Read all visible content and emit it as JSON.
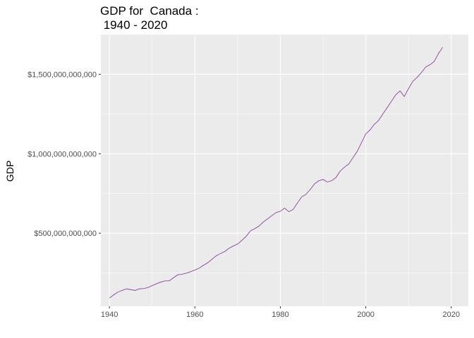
{
  "chart_data": {
    "type": "line",
    "title_line1": "GDP for  Canada :",
    "title_line2": " 1940 - 2020",
    "xlabel": "",
    "ylabel": "GDP",
    "xlim": [
      1938,
      2024
    ],
    "ylim": [
      40000000000,
      1750000000000
    ],
    "x_ticks": [
      1940,
      1960,
      1980,
      2000,
      2020
    ],
    "y_ticks": [
      500000000000,
      1000000000000,
      1500000000000
    ],
    "y_tick_labels": [
      "$500,000,000,000",
      "$1,000,000,000,000",
      "$1,500,000,000,000"
    ],
    "grid": true,
    "line_color": "#7b3294",
    "panel_color": "#ebebeb",
    "series": [
      {
        "x": [
          1940,
          1941,
          1942,
          1943,
          1944,
          1945,
          1946,
          1947,
          1948,
          1949,
          1950,
          1951,
          1952,
          1953,
          1954,
          1955,
          1956,
          1957,
          1958,
          1959,
          1960,
          1961,
          1962,
          1963,
          1964,
          1965,
          1966,
          1967,
          1968,
          1969,
          1970,
          1971,
          1972,
          1973,
          1974,
          1975,
          1976,
          1977,
          1978,
          1979,
          1980,
          1981,
          1982,
          1983,
          1984,
          1985,
          1986,
          1987,
          1988,
          1989,
          1990,
          1991,
          1992,
          1993,
          1994,
          1995,
          1996,
          1997,
          1998,
          1999,
          2000,
          2001,
          2002,
          2003,
          2004,
          2005,
          2006,
          2007,
          2008,
          2009,
          2010,
          2011,
          2012,
          2013,
          2014,
          2015,
          2016,
          2017,
          2018
        ],
        "values": [
          92000000000,
          112000000000,
          130000000000,
          140000000000,
          150000000000,
          145000000000,
          140000000000,
          150000000000,
          152000000000,
          158000000000,
          170000000000,
          182000000000,
          192000000000,
          200000000000,
          200000000000,
          220000000000,
          238000000000,
          242000000000,
          248000000000,
          258000000000,
          268000000000,
          280000000000,
          298000000000,
          314000000000,
          336000000000,
          358000000000,
          372000000000,
          385000000000,
          405000000000,
          420000000000,
          432000000000,
          455000000000,
          480000000000,
          515000000000,
          528000000000,
          545000000000,
          570000000000,
          590000000000,
          610000000000,
          630000000000,
          638000000000,
          658000000000,
          635000000000,
          650000000000,
          690000000000,
          728000000000,
          745000000000,
          775000000000,
          810000000000,
          830000000000,
          838000000000,
          822000000000,
          830000000000,
          850000000000,
          890000000000,
          915000000000,
          935000000000,
          975000000000,
          1015000000000,
          1070000000000,
          1125000000000,
          1150000000000,
          1185000000000,
          1210000000000,
          1250000000000,
          1290000000000,
          1330000000000,
          1370000000000,
          1395000000000,
          1360000000000,
          1410000000000,
          1455000000000,
          1480000000000,
          1510000000000,
          1545000000000,
          1560000000000,
          1580000000000,
          1630000000000,
          1670000000000
        ]
      }
    ]
  }
}
